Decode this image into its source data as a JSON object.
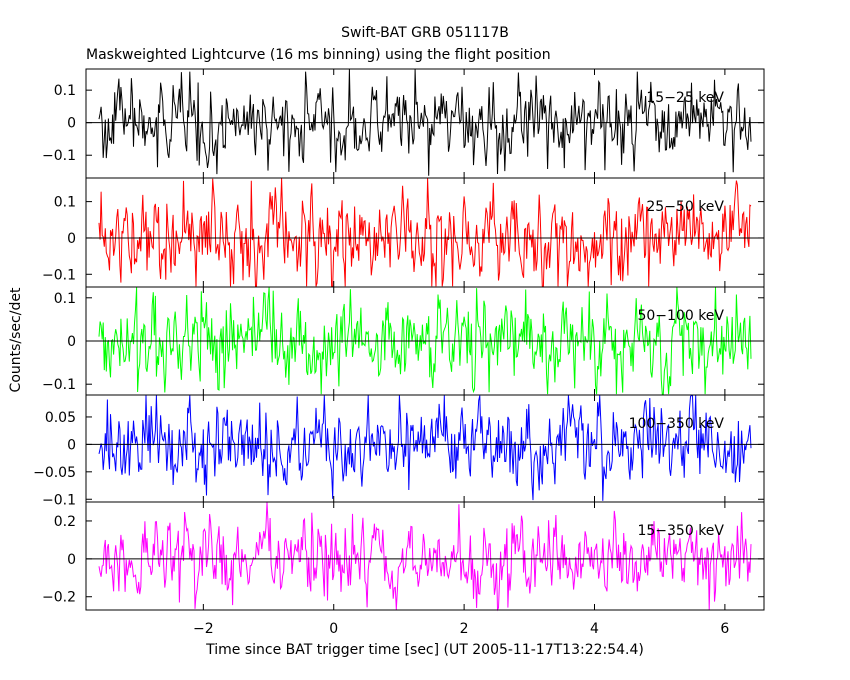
{
  "title": "Swift-BAT GRB 051117B",
  "subtitle": "Maskweighted Lightcurve (16 ms binning) using the flight position",
  "xlabel": "Time since BAT trigger time [sec] (UT 2005-11-17T13:22:54.4)",
  "ylabel": "Counts/sec/det",
  "chart_data": {
    "type": "line",
    "x_range": [
      -3.8,
      6.6
    ],
    "x_ticks": [
      -2,
      0,
      2,
      4,
      6
    ],
    "x_tick_labels": [
      "−2",
      "0",
      "2",
      "4",
      "6"
    ],
    "data_x_range": [
      -3.6,
      6.4
    ],
    "bin_size_sec": 0.016,
    "panels": [
      {
        "label": "15−25 keV",
        "color": "#000000",
        "ylim": [
          -0.17,
          0.165
        ],
        "y_ticks": [
          -0.1,
          0,
          0.1
        ],
        "y_tick_labels": [
          "−0.1",
          "0",
          "0.1"
        ],
        "amplitude": 0.05,
        "spikes": 0.16
      },
      {
        "label": "25−50 keV",
        "color": "#ff0000",
        "ylim": [
          -0.135,
          0.165
        ],
        "y_ticks": [
          -0.1,
          0,
          0.1
        ],
        "y_tick_labels": [
          "−0.1",
          "0",
          "0.1"
        ],
        "amplitude": 0.055,
        "spikes": 0.165
      },
      {
        "label": "50−100 keV",
        "color": "#00ff00",
        "ylim": [
          -0.125,
          0.125
        ],
        "y_ticks": [
          -0.1,
          0,
          0.1
        ],
        "y_tick_labels": [
          "−0.1",
          "0",
          "0.1"
        ],
        "amplitude": 0.045,
        "spikes": 0.125
      },
      {
        "label": "100−350 keV",
        "color": "#0000ff",
        "ylim": [
          -0.105,
          0.09
        ],
        "y_ticks": [
          -0.1,
          -0.05,
          0,
          0.05
        ],
        "y_tick_labels": [
          "−0.1",
          "−0.05",
          "0",
          "0.05"
        ],
        "amplitude": 0.035,
        "spikes": 0.09
      },
      {
        "label": "15−350 keV",
        "color": "#ff00ff",
        "ylim": [
          -0.27,
          0.3
        ],
        "y_ticks": [
          -0.2,
          0,
          0.2
        ],
        "y_tick_labels": [
          "−0.2",
          "0",
          "0.2"
        ],
        "amplitude": 0.09,
        "spikes": 0.28
      }
    ]
  }
}
